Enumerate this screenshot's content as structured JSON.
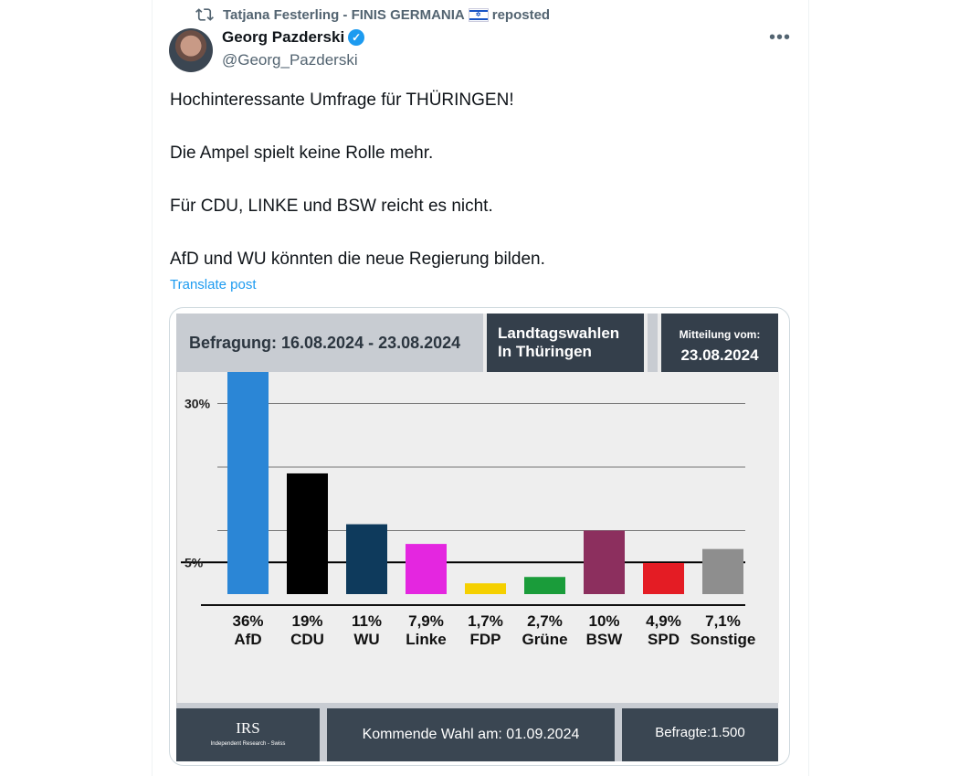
{
  "repost": {
    "label_prefix": "Tatjana Festerling - FINIS GERMANIA",
    "label_suffix": "reposted"
  },
  "author": {
    "name": "Georg Pazderski",
    "handle": "@Georg_Pazderski"
  },
  "post": {
    "lines": [
      "Hochinteressante Umfrage für THÜRINGEN!",
      "Die Ampel spielt keine Rolle mehr.",
      "Für CDU, LINKE und BSW reicht es nicht.",
      "AfD und WU könnten die neue Regierung bilden."
    ],
    "translate": "Translate post"
  },
  "icons": {
    "repost": "repost-icon",
    "verified": "verified-badge-icon",
    "more": "more-icon",
    "flag": "israel-flag-icon"
  },
  "image": {
    "survey_period": "Befragung: 16.08.2024 - 23.08.2024",
    "title_line1": "Landtagswahlen",
    "title_line2": "In Thüringen",
    "notice_label": "Mitteilung vom:",
    "notice_date": "23.08.2024",
    "footer_logo": "IRS",
    "footer_logo_sub": "Independent Research - Swiss",
    "footer_election": "Kommende Wahl am: 01.09.2024",
    "footer_respondents": "Befragte:1.500"
  },
  "chart_data": {
    "type": "bar",
    "categories": [
      "AfD",
      "CDU",
      "WU",
      "Linke",
      "FDP",
      "Grüne",
      "BSW",
      "SPD",
      "Sonstige"
    ],
    "values": [
      36,
      19,
      11,
      7.9,
      1.7,
      2.7,
      10,
      4.9,
      7.1
    ],
    "value_labels": [
      "36%",
      "19%",
      "11%",
      "7,9%",
      "1,7%",
      "2,7%",
      "10%",
      "4,9%",
      "7,1%"
    ],
    "colors": [
      "#2b86d6",
      "#000000",
      "#0e3a5c",
      "#e426e0",
      "#f5d000",
      "#1a9c3a",
      "#8c2f5e",
      "#e41c24",
      "#8e8e8e"
    ],
    "ytick_labels": [
      "30%",
      "5%"
    ],
    "ytick_values": [
      30,
      5
    ],
    "gridlines": [
      30,
      20,
      10,
      5
    ],
    "grid": true
  }
}
